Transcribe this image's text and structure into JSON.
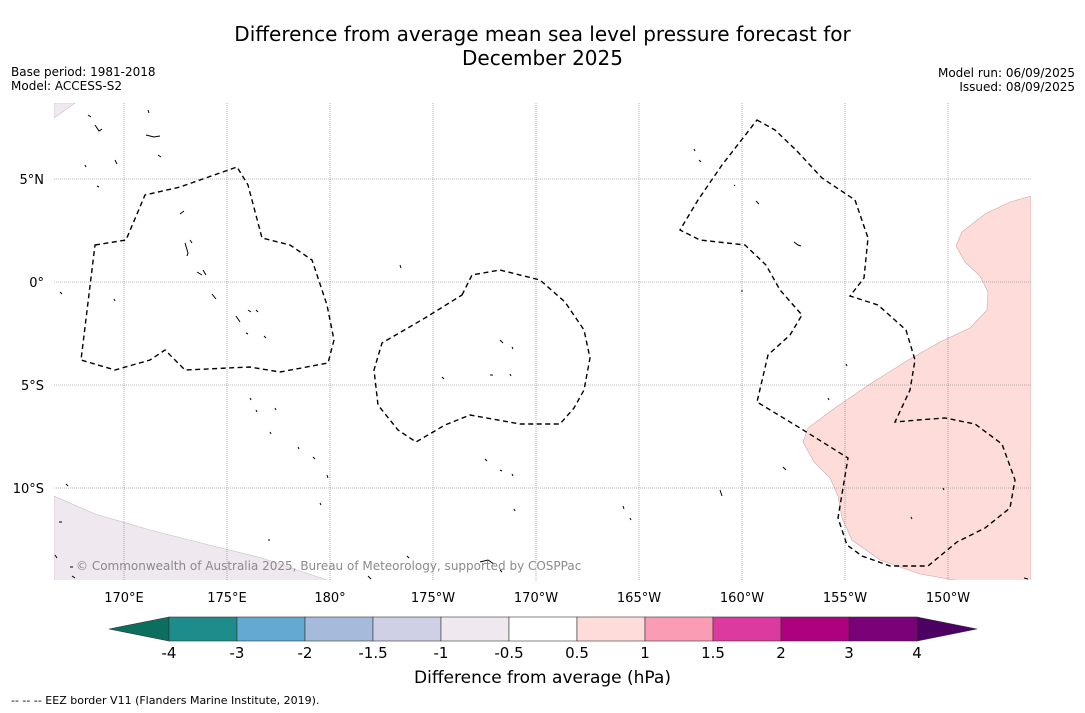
{
  "title_line1": "Difference from average mean sea level pressure forecast for",
  "title_line2": "December 2025",
  "meta_left": {
    "base_period": "Base period: 1981-2018",
    "model": "Model: ACCESS-S2"
  },
  "meta_right": {
    "model_run": "Model run: 06/09/2025",
    "issued": "Issued: 08/09/2025"
  },
  "map": {
    "lat_labels": [
      "5°N",
      "0°",
      "5°S",
      "10°S"
    ],
    "lon_labels": [
      "170°E",
      "175°E",
      "180°",
      "175°W",
      "170°W",
      "165°W",
      "160°W",
      "155°W",
      "150°W"
    ],
    "copyright": "© Commonwealth of Australia 2025, Bureau of Meteorology, supported by COSPPac",
    "shaded_regions": [
      {
        "category": "0.5 to 1",
        "location": "east of 157°W",
        "color": "#fddcda"
      },
      {
        "category": "-1 to -0.5",
        "location": "south-west corner",
        "color": "#efe8ef"
      }
    ]
  },
  "colorbar": {
    "ticks": [
      "-4",
      "-3",
      "-2",
      "-1.5",
      "-1",
      "-0.5",
      "0.5",
      "1",
      "1.5",
      "2",
      "3",
      "4"
    ],
    "colors": [
      "#1f8c8c",
      "#64a9d2",
      "#a6badb",
      "#cfd0e6",
      "#efe8ef",
      "#ffffff",
      "#fddcda",
      "#fa9db4",
      "#dd3a9f",
      "#ad0180",
      "#7a0177"
    ],
    "under_color": "#0c6e5e",
    "over_color": "#4c0062",
    "label": "Difference from average (hPa)"
  },
  "footnote": "--  --  -- EEZ border V11 (Flanders Marine Institute, 2019)."
}
